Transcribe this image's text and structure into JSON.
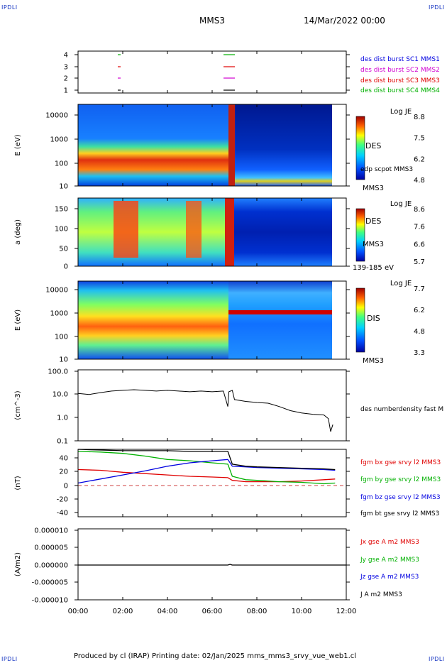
{
  "corner_label": "IPDLI",
  "header": {
    "spacecraft": "MMS3",
    "datetime": "14/Mar/2022 00:00"
  },
  "footer": {
    "text": "Produced by cl (IRAP)   Printing date: 02/Jan/2025   mms_mms3_srvy_vue_web1.cl"
  },
  "colors": {
    "red": "#e00000",
    "green": "#00b000",
    "blue": "#0000e0",
    "black": "#000000",
    "magenta": "#d000d0"
  },
  "time_axis": {
    "ticks": [
      "00:00",
      "02:00",
      "04:00",
      "06:00",
      "08:00",
      "10:00",
      "12:00"
    ],
    "range_hours": [
      0,
      12
    ]
  },
  "panel1": {
    "yticks": [
      "4",
      "3",
      "2",
      "1"
    ],
    "legend": [
      {
        "text": "des dist burst SC1 MMS1",
        "color": "#0000e0"
      },
      {
        "text": "des dist burst SC2 MMS2",
        "color": "#d000d0"
      },
      {
        "text": "des dist burst SC3 MMS3",
        "color": "#e00000"
      },
      {
        "text": "des dist burst SC4 MMS4",
        "color": "#00b000"
      }
    ]
  },
  "panel2": {
    "ylabel": "E (eV)",
    "yticks": [
      "10000",
      "1000",
      "100",
      "10"
    ],
    "right_labels": [
      "DES",
      "edp scpot MMS3",
      "MMS3"
    ],
    "colorbar": {
      "title": "Log JE",
      "ticks": [
        "8.8",
        "7.5",
        "6.2",
        "4.8"
      ]
    }
  },
  "panel3": {
    "ylabel": "a (deg)",
    "yticks": [
      "150",
      "100",
      "50",
      "0"
    ],
    "right_labels": [
      "DES",
      "MMS3",
      "139-185 eV"
    ],
    "colorbar": {
      "title": "Log JE",
      "ticks": [
        "8.6",
        "7.6",
        "6.6",
        "5.7"
      ]
    }
  },
  "panel4": {
    "ylabel": "E (eV)",
    "yticks": [
      "10000",
      "1000",
      "100",
      "10"
    ],
    "right_labels": [
      "DIS",
      "MMS3"
    ],
    "colorbar": {
      "title": "Log JE",
      "ticks": [
        "7.7",
        "6.2",
        "4.8",
        "3.3"
      ]
    }
  },
  "panel5": {
    "ylabel": "(cm^-3)",
    "yticks": [
      "100.0",
      "10.0",
      "1.0",
      "0.1"
    ],
    "right_labels": [
      "des numberdensity fast M"
    ]
  },
  "panel6": {
    "ylabel": "(nT)",
    "yticks": [
      "40",
      "20",
      "0",
      "-20",
      "-40"
    ],
    "legend": [
      {
        "text": "fgm bx gse srvy l2 MMS3",
        "color": "#e00000"
      },
      {
        "text": "fgm by gse srvy l2 MMS3",
        "color": "#00b000"
      },
      {
        "text": "fgm bz gse srvy l2 MMS3",
        "color": "#0000e0"
      },
      {
        "text": "fgm bt gse srvy l2 MMS3",
        "color": "#000000"
      }
    ]
  },
  "panel7": {
    "ylabel": "(A/m2)",
    "yticks": [
      "0.000010",
      "0.000005",
      "0.000000",
      "-0.000005",
      "-0.000010"
    ],
    "legend": [
      {
        "text": "Jx gse A m2 MMS3",
        "color": "#e00000"
      },
      {
        "text": "Jy gse A m2 MMS3",
        "color": "#00b000"
      },
      {
        "text": "Jz gse A m2 MMS3",
        "color": "#0000e0"
      },
      {
        "text": "J A m2 MMS3",
        "color": "#000000"
      }
    ]
  },
  "chart_data": [
    {
      "type": "line",
      "panel": "density",
      "x_hours": [
        0,
        0.5,
        1,
        1.5,
        2,
        2.5,
        3,
        3.5,
        4,
        4.5,
        5,
        5.5,
        6,
        6.5,
        6.7,
        6.75,
        6.9,
        7.0,
        7.5,
        8,
        8.5,
        9,
        9.5,
        10,
        10.5,
        11,
        11.2,
        11.3,
        11.4
      ],
      "y": [
        11,
        10,
        12,
        14,
        15,
        16,
        15,
        14,
        15,
        14,
        13,
        14,
        13,
        14,
        3,
        13,
        15,
        6,
        5,
        4.5,
        4.2,
        3,
        2,
        1.6,
        1.4,
        1.3,
        0.9,
        0.25,
        0.5
      ],
      "ylim": [
        0.1,
        100
      ],
      "log": true
    },
    {
      "type": "line",
      "panel": "magnetic field",
      "ylim": [
        -50,
        50
      ],
      "x_hours": [
        0,
        1,
        2,
        3,
        4,
        5,
        6,
        6.7,
        6.9,
        7.5,
        8,
        9,
        10,
        11,
        11.5
      ],
      "series": [
        {
          "name": "fgm bx gse srvy l2 MMS3",
          "values": [
            20,
            19,
            16,
            14,
            12,
            10,
            9,
            8,
            4,
            2,
            2,
            2,
            3,
            5,
            6
          ]
        },
        {
          "name": "fgm by gse srvy l2 MMS3",
          "values": [
            47,
            46,
            44,
            40,
            35,
            33,
            30,
            28,
            10,
            5,
            4,
            2,
            1,
            -1,
            0
          ]
        },
        {
          "name": "fgm bz gse srvy l2 MMS3",
          "values": [
            0,
            6,
            12,
            18,
            25,
            30,
            33,
            35,
            25,
            24,
            23,
            22,
            21,
            20,
            19
          ]
        },
        {
          "name": "fgm bt gse srvy l2 MMS3",
          "values": [
            50,
            49,
            48,
            48,
            48,
            47,
            47,
            47,
            28,
            25,
            24,
            23,
            22,
            21,
            20
          ]
        }
      ]
    },
    {
      "type": "line",
      "panel": "current density",
      "ylim": [
        -1e-05,
        1e-05
      ],
      "x_hours": [
        0,
        6.7,
        6.8,
        6.9,
        12
      ],
      "y": [
        0,
        0,
        2e-07,
        0,
        0
      ]
    }
  ]
}
